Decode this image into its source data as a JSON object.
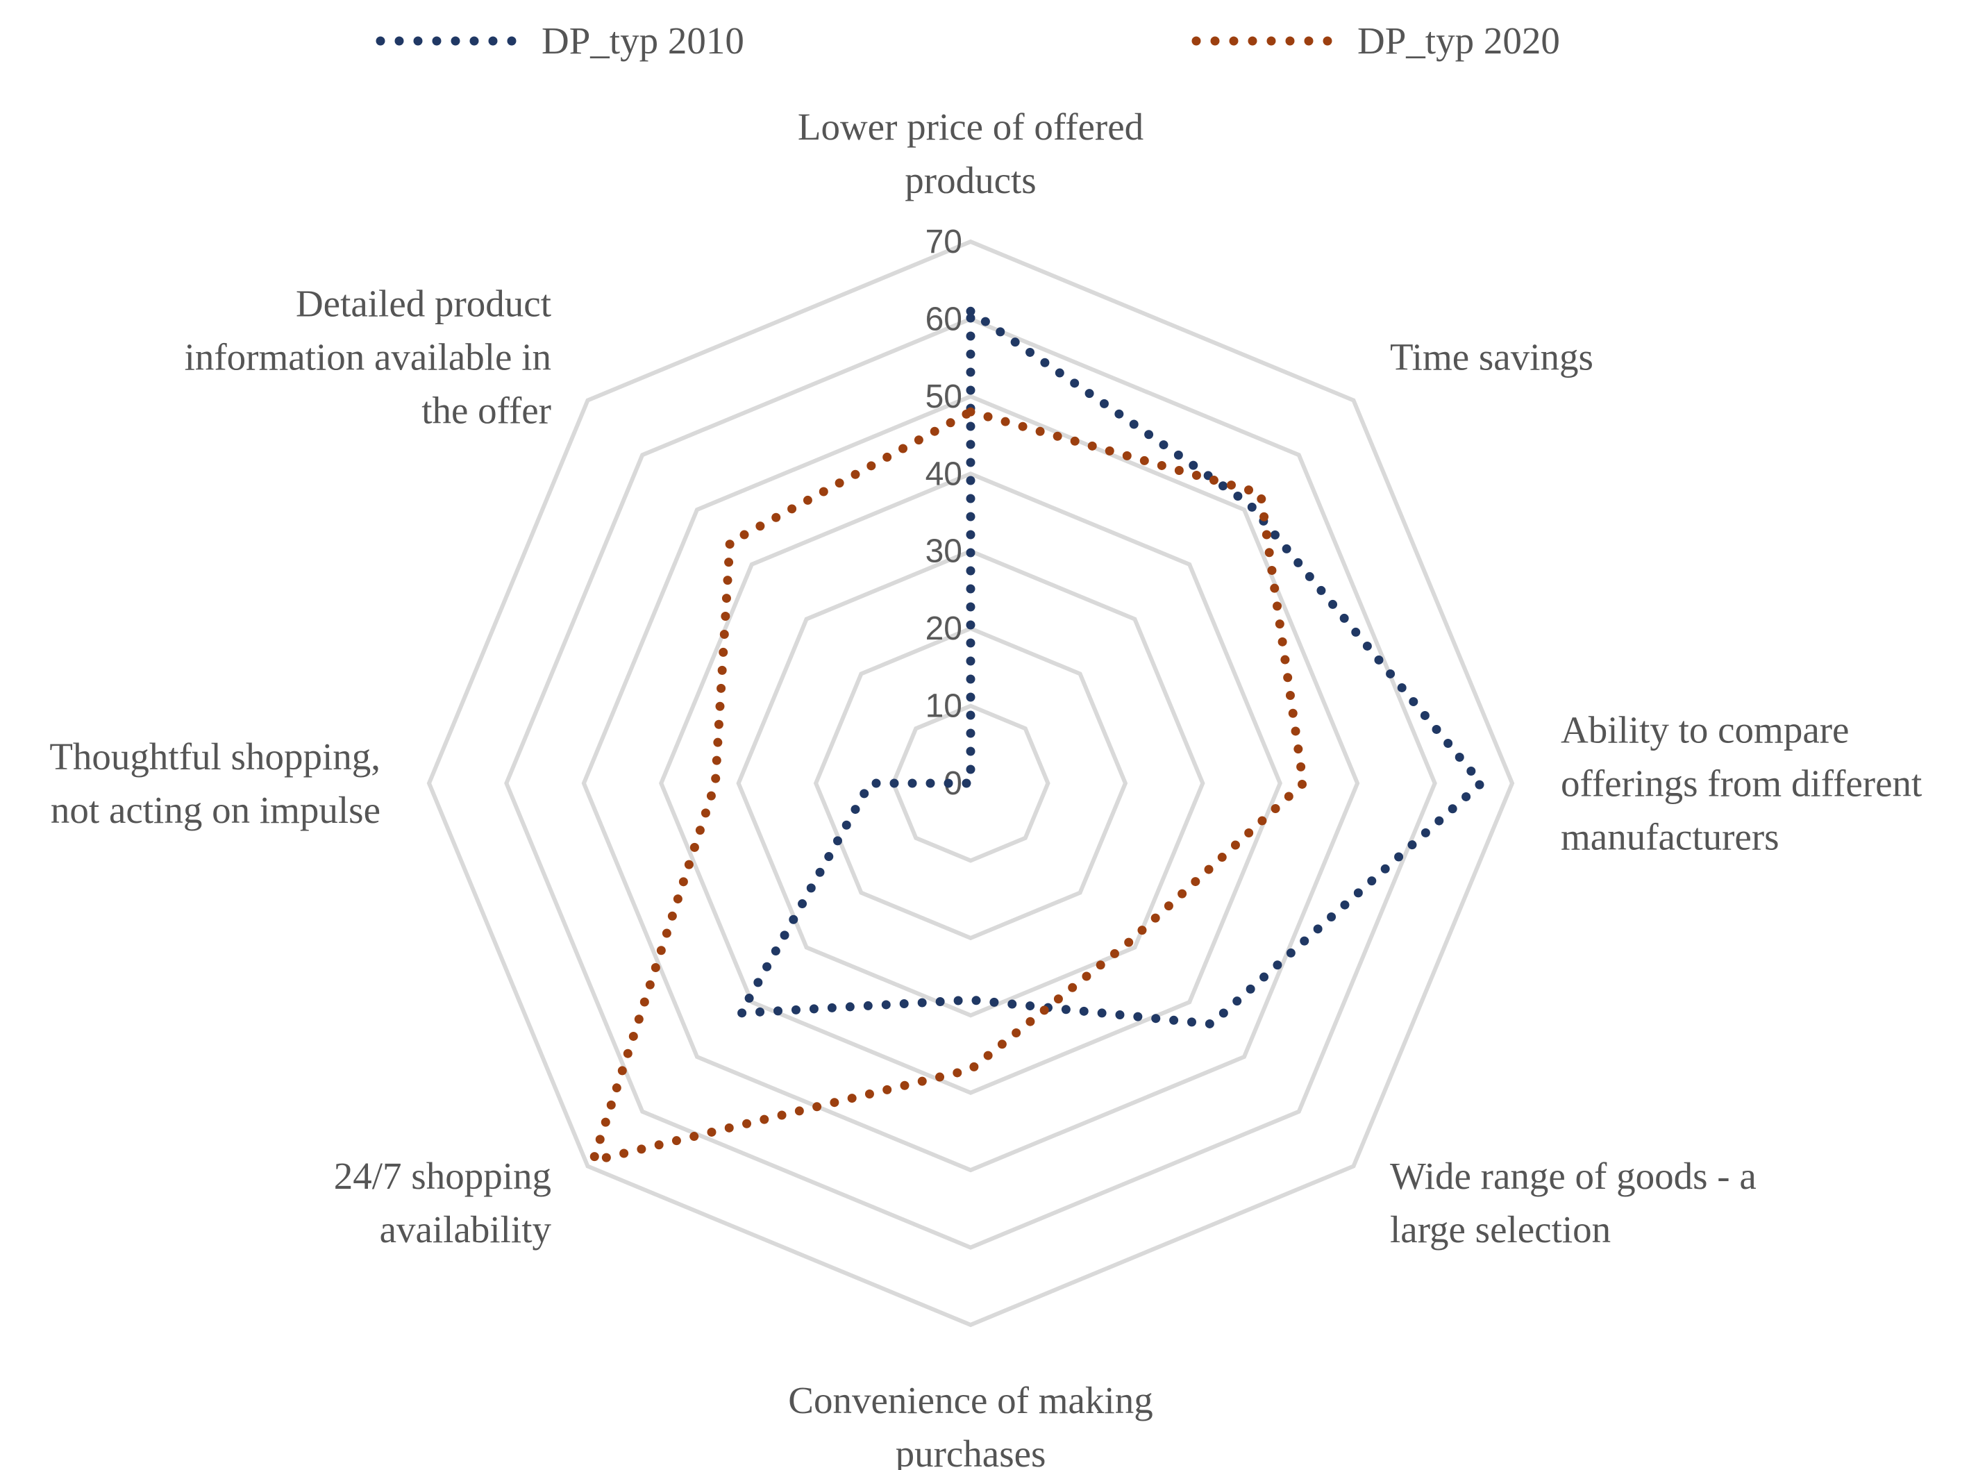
{
  "chart_data": {
    "type": "radar",
    "title": "",
    "categories": [
      [
        "Lower price of offered",
        "products"
      ],
      [
        "Time savings"
      ],
      [
        "Ability to compare",
        "offerings from different",
        "manufacturers"
      ],
      [
        "Wide range of goods - a",
        "large selection"
      ],
      [
        "Convenience of making",
        "purchases"
      ],
      [
        "24/7 shopping",
        "availability"
      ],
      [
        "Thoughtful shopping,",
        "not acting on impulse"
      ],
      [
        "Detailed product",
        "information available in",
        "the offer"
      ]
    ],
    "rlim": [
      0,
      70
    ],
    "ticks": [
      "0",
      "10",
      "20",
      "30",
      "40",
      "50",
      "60",
      "70"
    ],
    "tick_values": [
      0,
      10,
      20,
      30,
      40,
      50,
      60,
      70
    ],
    "legend_position": "top",
    "series": [
      {
        "name": "DP_typ 2010",
        "color": "#203864",
        "values": [
          61,
          51,
          66,
          44,
          28,
          42,
          13,
          0
        ]
      },
      {
        "name": "DP_typ 2020",
        "color": "#9C3F0F",
        "values": [
          48,
          53,
          43,
          29,
          37,
          69,
          33,
          44
        ]
      }
    ],
    "gridline_color": "#D9D9D9"
  }
}
